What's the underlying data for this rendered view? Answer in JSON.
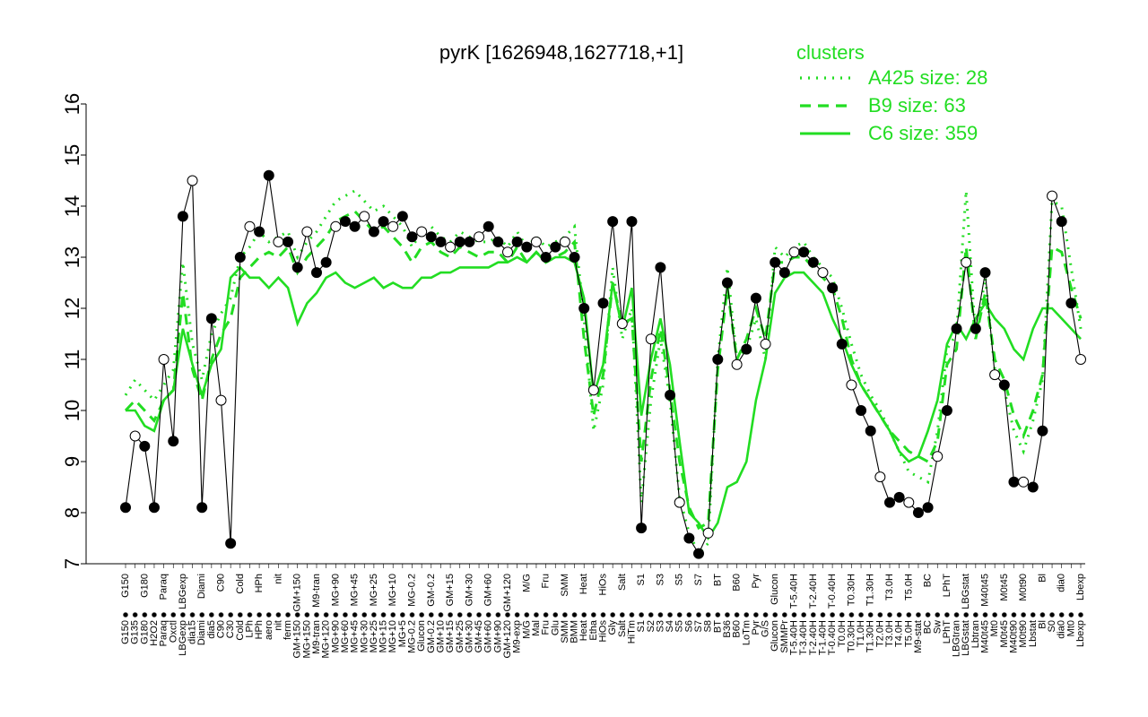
{
  "chart_data": {
    "type": "line",
    "title": "pyrK [1626948,1627718,+1]",
    "ylim": [
      7,
      16
    ],
    "y_ticks": [
      7,
      8,
      9,
      10,
      11,
      12,
      13,
      14,
      15,
      16
    ],
    "x_tick_labels": [
      "G150",
      "G135",
      "G180",
      "H2O2",
      "Paraq",
      "Oxctl",
      "LBGexp",
      "dia15",
      "Diami",
      "dia5",
      "C90",
      "C30",
      "Cold",
      "LPh",
      "HPh",
      "aero",
      "nit",
      "ferm",
      "GM+150",
      "MG+150",
      "M9-tran",
      "MG+120",
      "MG+90",
      "MG+60",
      "MG+45",
      "MG+30",
      "MG+25",
      "MG+15",
      "MG+10",
      "MG+5",
      "MG-0.2",
      "Glucon",
      "GM-0.2",
      "GM+10",
      "GM+15",
      "GM+25",
      "GM+30",
      "GM+45",
      "GM+60",
      "GM+90",
      "GM+120",
      "M9-exp",
      "M/G",
      "Mal",
      "Fru",
      "Glu",
      "SMM",
      "BMM",
      "Heat",
      "Etha",
      "HiOs",
      "Gly",
      "Salt",
      "HiTm",
      "S1",
      "S2",
      "S3",
      "S4",
      "S5",
      "S6",
      "S7",
      "S8",
      "BT",
      "B36",
      "B60",
      "LoTm",
      "Pyr",
      "G/S",
      "Glucon",
      "SMMPr",
      "T-5.40H",
      "T-3.40H",
      "T-2.40H",
      "T-1.40H",
      "T-0.40H",
      "T0.0H",
      "T0.30H",
      "T1.0H",
      "T1.30H",
      "T2.0H",
      "T3.0H",
      "T4.0H",
      "T5.0H",
      "M9-stat",
      "BC",
      "Sw",
      "LPhT",
      "LBGtran",
      "LBGstat",
      "Lbtran",
      "M40t45",
      "Mt0",
      "M0t45",
      "M40t90",
      "M0t90",
      "Lbstat",
      "Bl",
      "S0",
      "dia0",
      "Mt0",
      "Lbexp"
    ],
    "series": [
      {
        "name": "A425 size: 28",
        "style": "dotted",
        "color": "#22dd22",
        "values": [
          10.3,
          10.6,
          10.4,
          10.2,
          10.5,
          10.8,
          12.9,
          11.3,
          10.6,
          11.5,
          11.9,
          12.2,
          13.0,
          13.2,
          13.5,
          13.3,
          13.4,
          13.5,
          13.0,
          13.3,
          13.5,
          13.8,
          14.1,
          14.2,
          14.3,
          14.1,
          13.9,
          14.0,
          13.8,
          13.6,
          13.2,
          13.5,
          13.6,
          13.4,
          13.3,
          13.5,
          13.4,
          13.3,
          13.3,
          13.4,
          13.2,
          13.5,
          13.2,
          13.4,
          13.2,
          13.3,
          13.4,
          13.6,
          11.8,
          9.6,
          10.5,
          12.8,
          11.4,
          12.0,
          8.2,
          10.2,
          11.4,
          10.2,
          8.3,
          7.6,
          7.2,
          7.4,
          11.0,
          12.8,
          11.0,
          11.2,
          11.8,
          11.0,
          13.2,
          13.0,
          13.2,
          13.3,
          13.0,
          12.8,
          12.6,
          12.0,
          11.3,
          10.7,
          10.3,
          10.0,
          9.6,
          9.2,
          8.8,
          8.7,
          8.6,
          9.6,
          11.2,
          11.5,
          14.3,
          11.4,
          12.6,
          10.8,
          10.4,
          9.6,
          9.2,
          9.8,
          10.6,
          14.1,
          14.0,
          12.8,
          11.6
        ]
      },
      {
        "name": "B9 size: 63",
        "style": "dashed",
        "color": "#22dd22",
        "values": [
          10.0,
          10.2,
          10.0,
          9.8,
          10.2,
          10.4,
          12.3,
          10.8,
          10.2,
          11.0,
          11.5,
          11.8,
          12.6,
          12.8,
          13.0,
          13.1,
          13.0,
          13.2,
          12.7,
          13.0,
          13.2,
          13.4,
          13.7,
          13.8,
          13.9,
          13.7,
          13.5,
          13.6,
          13.4,
          13.2,
          12.9,
          13.2,
          13.3,
          13.1,
          13.0,
          13.2,
          13.1,
          13.0,
          13.1,
          13.1,
          12.9,
          13.2,
          12.9,
          13.1,
          12.9,
          13.0,
          13.1,
          13.3,
          11.4,
          9.9,
          10.7,
          12.5,
          11.7,
          11.8,
          9.0,
          10.6,
          11.6,
          10.4,
          9.0,
          8.1,
          7.7,
          7.8,
          10.8,
          12.4,
          11.0,
          11.4,
          12.0,
          11.4,
          12.9,
          12.9,
          13.0,
          13.0,
          12.8,
          12.6,
          12.4,
          11.8,
          11.0,
          10.5,
          10.2,
          9.9,
          9.6,
          9.4,
          9.2,
          9.1,
          9.0,
          9.4,
          10.9,
          11.2,
          13.2,
          11.4,
          12.3,
          11.0,
          10.6,
          9.9,
          9.5,
          10.0,
          10.7,
          13.2,
          13.1,
          12.4,
          11.8
        ]
      },
      {
        "name": "C6 size: 359",
        "style": "solid",
        "color": "#22dd22",
        "values": [
          10.0,
          10.0,
          9.7,
          9.6,
          10.2,
          10.4,
          11.6,
          10.9,
          10.3,
          10.9,
          11.2,
          12.6,
          12.8,
          12.6,
          12.6,
          12.4,
          12.6,
          12.4,
          11.7,
          12.1,
          12.3,
          12.6,
          12.7,
          12.5,
          12.4,
          12.5,
          12.6,
          12.4,
          12.5,
          12.4,
          12.4,
          12.6,
          12.6,
          12.7,
          12.7,
          12.8,
          12.8,
          12.8,
          12.8,
          12.9,
          12.9,
          13.0,
          12.9,
          13.1,
          12.9,
          13.0,
          13.0,
          12.9,
          12.2,
          10.3,
          10.9,
          12.5,
          11.6,
          12.4,
          9.9,
          11.0,
          11.8,
          10.9,
          9.4,
          8.0,
          7.8,
          7.5,
          7.8,
          8.5,
          8.6,
          9.0,
          10.2,
          11.0,
          12.3,
          12.6,
          12.7,
          12.7,
          12.5,
          12.3,
          11.8,
          11.4,
          10.9,
          10.5,
          10.2,
          9.9,
          9.6,
          9.2,
          9.0,
          9.1,
          9.6,
          10.2,
          11.3,
          11.7,
          11.4,
          11.8,
          12.1,
          11.8,
          11.6,
          11.2,
          11.0,
          11.6,
          12.0,
          12.0,
          11.8,
          11.6,
          11.4
        ]
      },
      {
        "name": "pyrK",
        "style": "points",
        "color": "#000000",
        "values": [
          8.1,
          9.5,
          9.3,
          8.1,
          11.0,
          9.4,
          13.8,
          14.5,
          8.1,
          11.8,
          10.2,
          7.4,
          13.0,
          13.6,
          13.5,
          14.6,
          13.3,
          13.3,
          12.8,
          13.5,
          12.7,
          12.9,
          13.6,
          13.7,
          13.6,
          13.8,
          13.5,
          13.7,
          13.6,
          13.8,
          13.4,
          13.5,
          13.4,
          13.3,
          13.2,
          13.3,
          13.3,
          13.4,
          13.6,
          13.3,
          13.1,
          13.3,
          13.2,
          13.3,
          13.0,
          13.2,
          13.3,
          13.0,
          12.0,
          10.4,
          12.1,
          13.7,
          11.7,
          13.7,
          7.7,
          11.4,
          12.8,
          10.3,
          8.2,
          7.5,
          7.2,
          7.6,
          11.0,
          12.5,
          10.9,
          11.2,
          12.2,
          11.3,
          12.9,
          12.7,
          13.1,
          13.1,
          12.9,
          12.7,
          12.4,
          11.3,
          10.5,
          10.0,
          9.6,
          8.7,
          8.2,
          8.3,
          8.2,
          8.0,
          8.1,
          9.1,
          10.0,
          11.6,
          12.9,
          11.6,
          12.7,
          10.7,
          10.5,
          8.6,
          8.6,
          8.5,
          9.6,
          14.2,
          13.7,
          12.1,
          11.0
        ]
      }
    ],
    "legend": {
      "title": "clusters",
      "position": "top-right",
      "entries": [
        "A425 size: 28",
        "B9 size: 63",
        "C6 size: 359"
      ]
    },
    "grid": false,
    "xlabel": "",
    "ylabel": ""
  }
}
